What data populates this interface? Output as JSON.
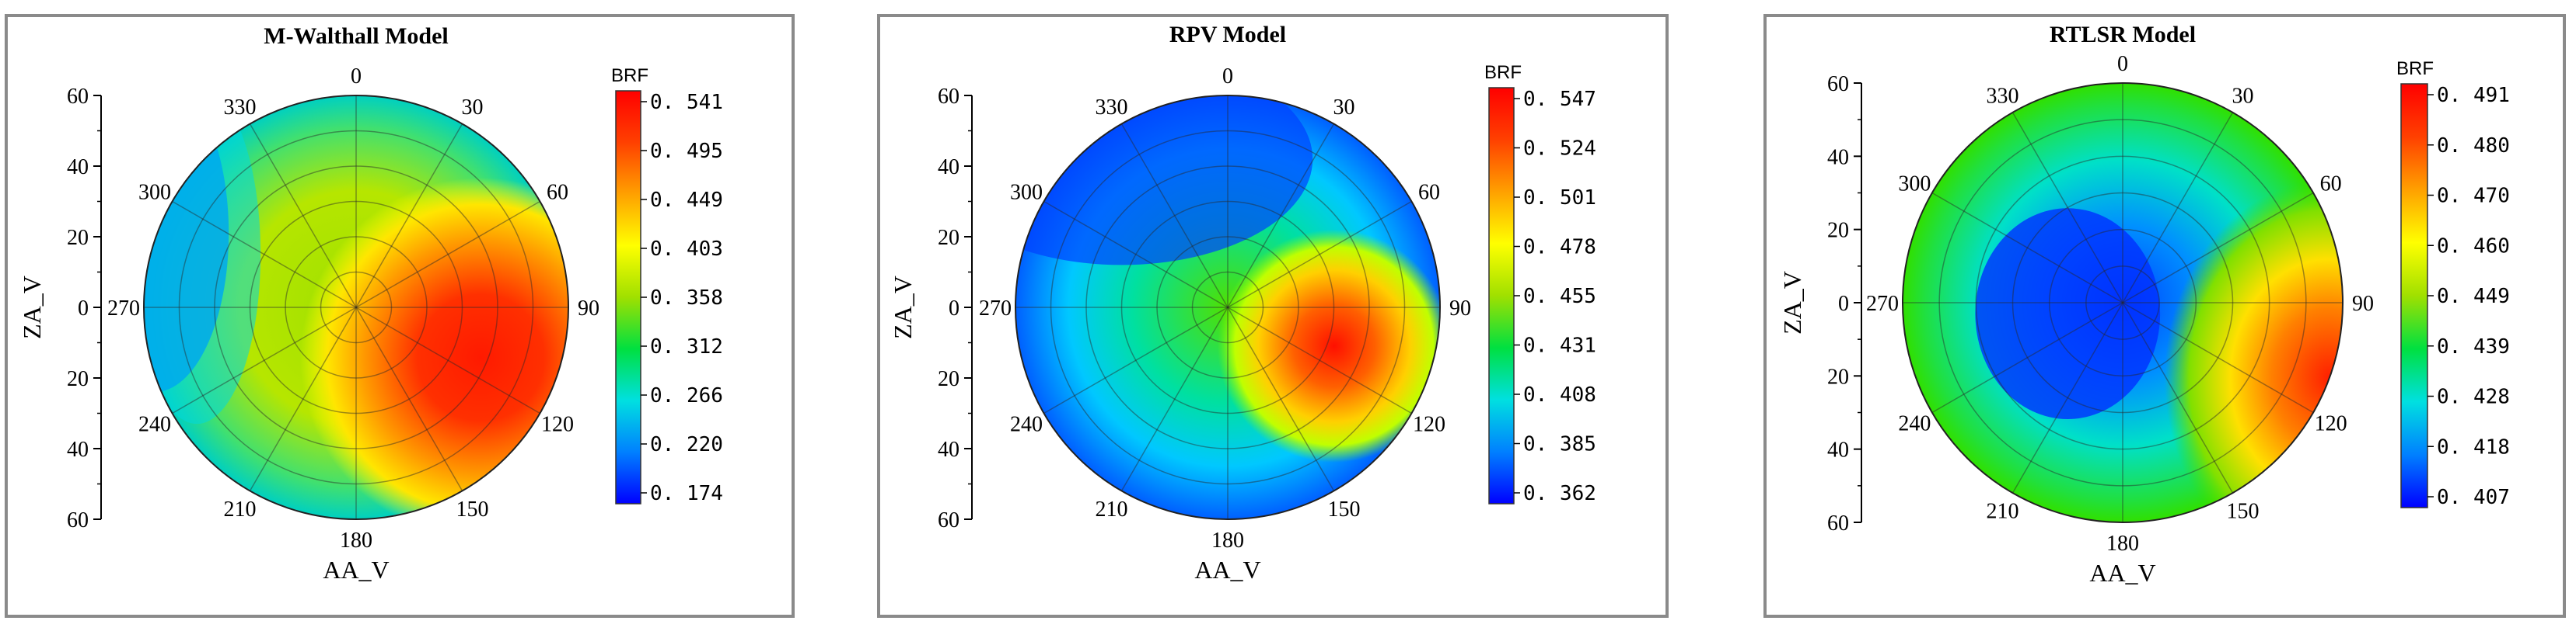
{
  "chart_data": [
    {
      "type": "polar-contour",
      "title": "M-Walthall Model",
      "xlabel": "AA_V",
      "ylabel": "ZA_V",
      "y_ticks": [
        "60",
        "40",
        "20",
        "0",
        "20",
        "40",
        "60"
      ],
      "angle_ticks": [
        "0",
        "30",
        "60",
        "90",
        "120",
        "150",
        "180",
        "210",
        "240",
        "270",
        "300",
        "330"
      ],
      "colorbar": {
        "title": "BRF",
        "ticks": [
          "0. 541",
          "0. 495",
          "0. 449",
          "0. 403",
          "0. 358",
          "0. 312",
          "0. 266",
          "0. 220",
          "0. 174"
        ],
        "min": 0.174,
        "max": 0.541
      },
      "hotspot": {
        "azimuth_deg": 112,
        "zenith_deg": 38
      },
      "grid": true
    },
    {
      "type": "polar-contour",
      "title": "RPV Model",
      "xlabel": "AA_V",
      "ylabel": "ZA_V",
      "y_ticks": [
        "60",
        "40",
        "20",
        "0",
        "20",
        "40",
        "60"
      ],
      "angle_ticks": [
        "0",
        "30",
        "60",
        "90",
        "120",
        "150",
        "180",
        "210",
        "240",
        "270",
        "300",
        "330"
      ],
      "colorbar": {
        "title": "BRF",
        "ticks": [
          "0. 547",
          "0. 524",
          "0. 501",
          "0. 478",
          "0. 455",
          "0. 431",
          "0. 408",
          "0. 385",
          "0. 362"
        ],
        "min": 0.362,
        "max": 0.547
      },
      "hotspot": {
        "azimuth_deg": 110,
        "zenith_deg": 32
      },
      "grid": true
    },
    {
      "type": "polar-contour",
      "title": "RTLSR Model",
      "xlabel": "AA_V",
      "ylabel": "ZA_V",
      "y_ticks": [
        "60",
        "40",
        "20",
        "0",
        "20",
        "40",
        "60"
      ],
      "angle_ticks": [
        "0",
        "30",
        "60",
        "90",
        "120",
        "150",
        "180",
        "210",
        "240",
        "270",
        "300",
        "330"
      ],
      "colorbar": {
        "title": "BRF",
        "ticks": [
          "0. 491",
          "0. 480",
          "0. 470",
          "0. 460",
          "0. 449",
          "0. 439",
          "0. 428",
          "0. 418",
          "0. 407"
        ],
        "min": 0.407,
        "max": 0.491
      },
      "hotspot": {
        "azimuth_deg": 110,
        "zenith_deg": 60
      },
      "grid": true
    }
  ],
  "colormap": [
    "#0000ff",
    "#0080ff",
    "#00e0e0",
    "#00e040",
    "#a0e000",
    "#ffff00",
    "#ffa000",
    "#ff4000",
    "#ff0000"
  ]
}
